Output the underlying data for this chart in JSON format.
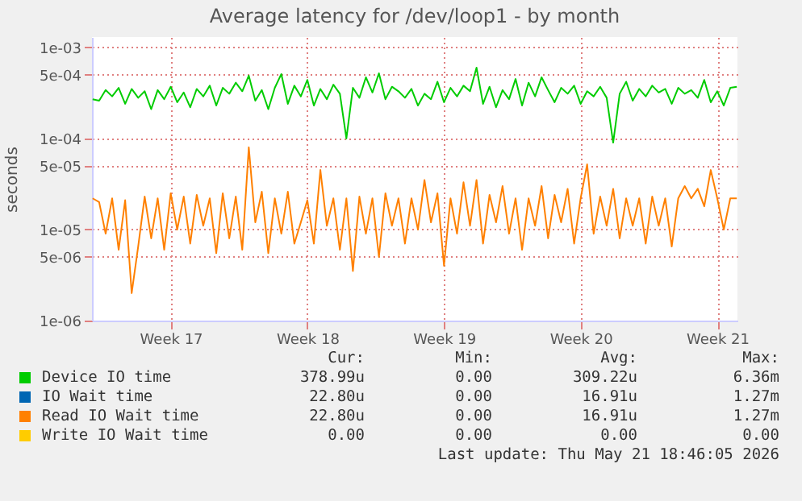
{
  "chart_data": {
    "type": "line",
    "title": "Average latency for /dev/loop1 - by month",
    "ylabel": "seconds",
    "log": true,
    "grid": true,
    "legend": "bottom",
    "categories": [
      null,
      null,
      null,
      null,
      null,
      null,
      null,
      null,
      null,
      null,
      null,
      null,
      "Week 17",
      null,
      null,
      null,
      null,
      null,
      null,
      null,
      null,
      null,
      null,
      null,
      null,
      null,
      null,
      null,
      null,
      null,
      null,
      null,
      null,
      "Week 18",
      null,
      null,
      null,
      null,
      null,
      null,
      null,
      null,
      null,
      null,
      null,
      null,
      null,
      null,
      null,
      null,
      null,
      null,
      null,
      null,
      "Week 19",
      null,
      null,
      null,
      null,
      null,
      null,
      null,
      null,
      null,
      null,
      null,
      null,
      null,
      null,
      null,
      null,
      null,
      null,
      null,
      null,
      "Week 20",
      null,
      null,
      null,
      null,
      null,
      null,
      null,
      null,
      null,
      null,
      null,
      null,
      null,
      null,
      null,
      null,
      null,
      null,
      null,
      null,
      "Week 21",
      null,
      null,
      null
    ],
    "ylim": [
      1e-06,
      0.0013
    ],
    "yticks": [
      {
        "value": 1e-06,
        "label": "1e-06"
      },
      {
        "value": 5e-06,
        "label": "5e-06"
      },
      {
        "value": 1e-05,
        "label": "1e-05"
      },
      {
        "value": 5e-05,
        "label": "5e-05"
      },
      {
        "value": 0.0001,
        "label": "1e-04"
      },
      {
        "value": 0.0005,
        "label": "5e-04"
      },
      {
        "value": 0.001,
        "label": "1e-03"
      }
    ],
    "series": [
      {
        "name": "Device IO time",
        "color": "#00cc00",
        "values": [
          0.00027,
          0.00026,
          0.00034,
          0.00029,
          0.00036,
          0.00024,
          0.00035,
          0.00028,
          0.00033,
          0.00021,
          0.00034,
          0.00027,
          0.00037,
          0.00025,
          0.00032,
          0.00022,
          0.00035,
          0.00029,
          0.00038,
          0.00023,
          0.00036,
          0.00031,
          0.00041,
          0.00033,
          0.00049,
          0.00026,
          0.00034,
          0.00021,
          0.00036,
          0.00051,
          0.00024,
          0.00038,
          0.00029,
          0.00044,
          0.00023,
          0.00035,
          0.00027,
          0.00039,
          0.00031,
          0.0001,
          0.00036,
          0.00028,
          0.00047,
          0.00032,
          0.00052,
          0.00027,
          0.00037,
          0.00033,
          0.00028,
          0.00035,
          0.00023,
          0.00031,
          0.00027,
          0.00042,
          0.00025,
          0.00036,
          0.00029,
          0.00038,
          0.00033,
          0.0006,
          0.00024,
          0.00037,
          0.00022,
          0.00034,
          0.00027,
          0.00045,
          0.00023,
          0.00041,
          0.00029,
          0.00047,
          0.00034,
          0.00025,
          0.00036,
          0.00031,
          0.00038,
          0.00024,
          0.00033,
          0.00029,
          0.00037,
          0.00028,
          9e-05,
          0.00031,
          0.00042,
          0.00026,
          0.00035,
          0.00029,
          0.00038,
          0.00032,
          0.00035,
          0.00024,
          0.00036,
          0.00031,
          0.00034,
          0.00028,
          0.00044,
          0.00025,
          0.00033,
          0.00023,
          0.00036,
          0.00037
        ]
      },
      {
        "name": "IO Wait time",
        "color": "#0066b3",
        "values": [
          null,
          null,
          null,
          null,
          null,
          null,
          null,
          null,
          null,
          null,
          null,
          null,
          null,
          null,
          null,
          null,
          null,
          null,
          null,
          null,
          null,
          null,
          null,
          null,
          null,
          null,
          null,
          null,
          null,
          null,
          null,
          null,
          null,
          null,
          null,
          null,
          null,
          null,
          null,
          null,
          null,
          null,
          null,
          null,
          null,
          null,
          null,
          null,
          null,
          null,
          null,
          null,
          null,
          null,
          null,
          null,
          null,
          null,
          null,
          null,
          null,
          null,
          null,
          null,
          null,
          null,
          null,
          null,
          null,
          null,
          null,
          null,
          null,
          null,
          null,
          null,
          null,
          null,
          null,
          null,
          null,
          null,
          null,
          null,
          null,
          null,
          null,
          null,
          null,
          null,
          null,
          null,
          null,
          null,
          null,
          null,
          null,
          null,
          null,
          null
        ]
      },
      {
        "name": "Read IO Wait time",
        "color": "#ff8000",
        "values": [
          2.2e-05,
          2e-05,
          9e-06,
          2.2e-05,
          6e-06,
          2.1e-05,
          2e-06,
          6.5e-06,
          2.3e-05,
          8e-06,
          2.2e-05,
          6e-06,
          2.5e-05,
          1e-05,
          2.3e-05,
          7e-06,
          2.4e-05,
          1.1e-05,
          2.2e-05,
          5.5e-06,
          2.5e-05,
          8e-06,
          2.3e-05,
          6e-06,
          8e-05,
          1.2e-05,
          2.6e-05,
          5.5e-06,
          2.2e-05,
          9e-06,
          2.6e-05,
          7e-06,
          1.2e-05,
          2.1e-05,
          7e-06,
          4.5e-05,
          1.1e-05,
          2.2e-05,
          6e-06,
          2.2e-05,
          3.5e-06,
          2.3e-05,
          9e-06,
          2.2e-05,
          5e-06,
          2.5e-05,
          1.1e-05,
          2.2e-05,
          7e-06,
          2.2e-05,
          1e-05,
          3.5e-05,
          1.2e-05,
          2.5e-05,
          4e-06,
          2.2e-05,
          9e-06,
          3.3e-05,
          1.1e-05,
          3.5e-05,
          7e-06,
          2.4e-05,
          1.2e-05,
          3e-05,
          9e-06,
          2.2e-05,
          6e-06,
          2.2e-05,
          1.1e-05,
          3e-05,
          8e-06,
          2.4e-05,
          1.2e-05,
          2.8e-05,
          7e-06,
          2.2e-05,
          5.2e-05,
          9e-06,
          2.3e-05,
          1.1e-05,
          2.8e-05,
          8e-06,
          2.2e-05,
          1.1e-05,
          2.2e-05,
          7e-06,
          2.3e-05,
          1.1e-05,
          2.2e-05,
          6.5e-06,
          2.2e-05,
          3e-05,
          2.2e-05,
          2.8e-05,
          1.8e-05,
          4.5e-05,
          2.2e-05,
          1e-05,
          2.2e-05,
          2.2e-05
        ]
      },
      {
        "name": "Write IO Wait time",
        "color": "#ffcc00",
        "values": [
          null,
          null,
          null,
          null,
          null,
          null,
          null,
          null,
          null,
          null,
          null,
          null,
          null,
          null,
          null,
          null,
          null,
          null,
          null,
          null,
          null,
          null,
          null,
          null,
          null,
          null,
          null,
          null,
          null,
          null,
          null,
          null,
          null,
          null,
          null,
          null,
          null,
          null,
          null,
          null,
          null,
          null,
          null,
          null,
          null,
          null,
          null,
          null,
          null,
          null,
          null,
          null,
          null,
          null,
          null,
          null,
          null,
          null,
          null,
          null,
          null,
          null,
          null,
          null,
          null,
          null,
          null,
          null,
          null,
          null,
          null,
          null,
          null,
          null,
          null,
          null,
          null,
          null,
          null,
          null,
          null,
          null,
          null,
          null,
          null,
          null,
          null,
          null,
          null,
          null,
          null,
          null,
          null,
          null,
          null,
          null,
          null,
          null,
          null,
          null
        ]
      }
    ],
    "annotations": [
      "Cur:",
      "Min:",
      "Avg:",
      "Max:",
      "378.99u",
      "0.00",
      "309.22u",
      "6.36m",
      "22.80u",
      "0.00",
      "16.91u",
      "1.27m",
      "22.80u",
      "0.00",
      "16.91u",
      "1.27m",
      "0.00",
      "0.00",
      "0.00",
      "0.00",
      "Last update: Thu May 21 18:46:05 2026"
    ]
  }
}
